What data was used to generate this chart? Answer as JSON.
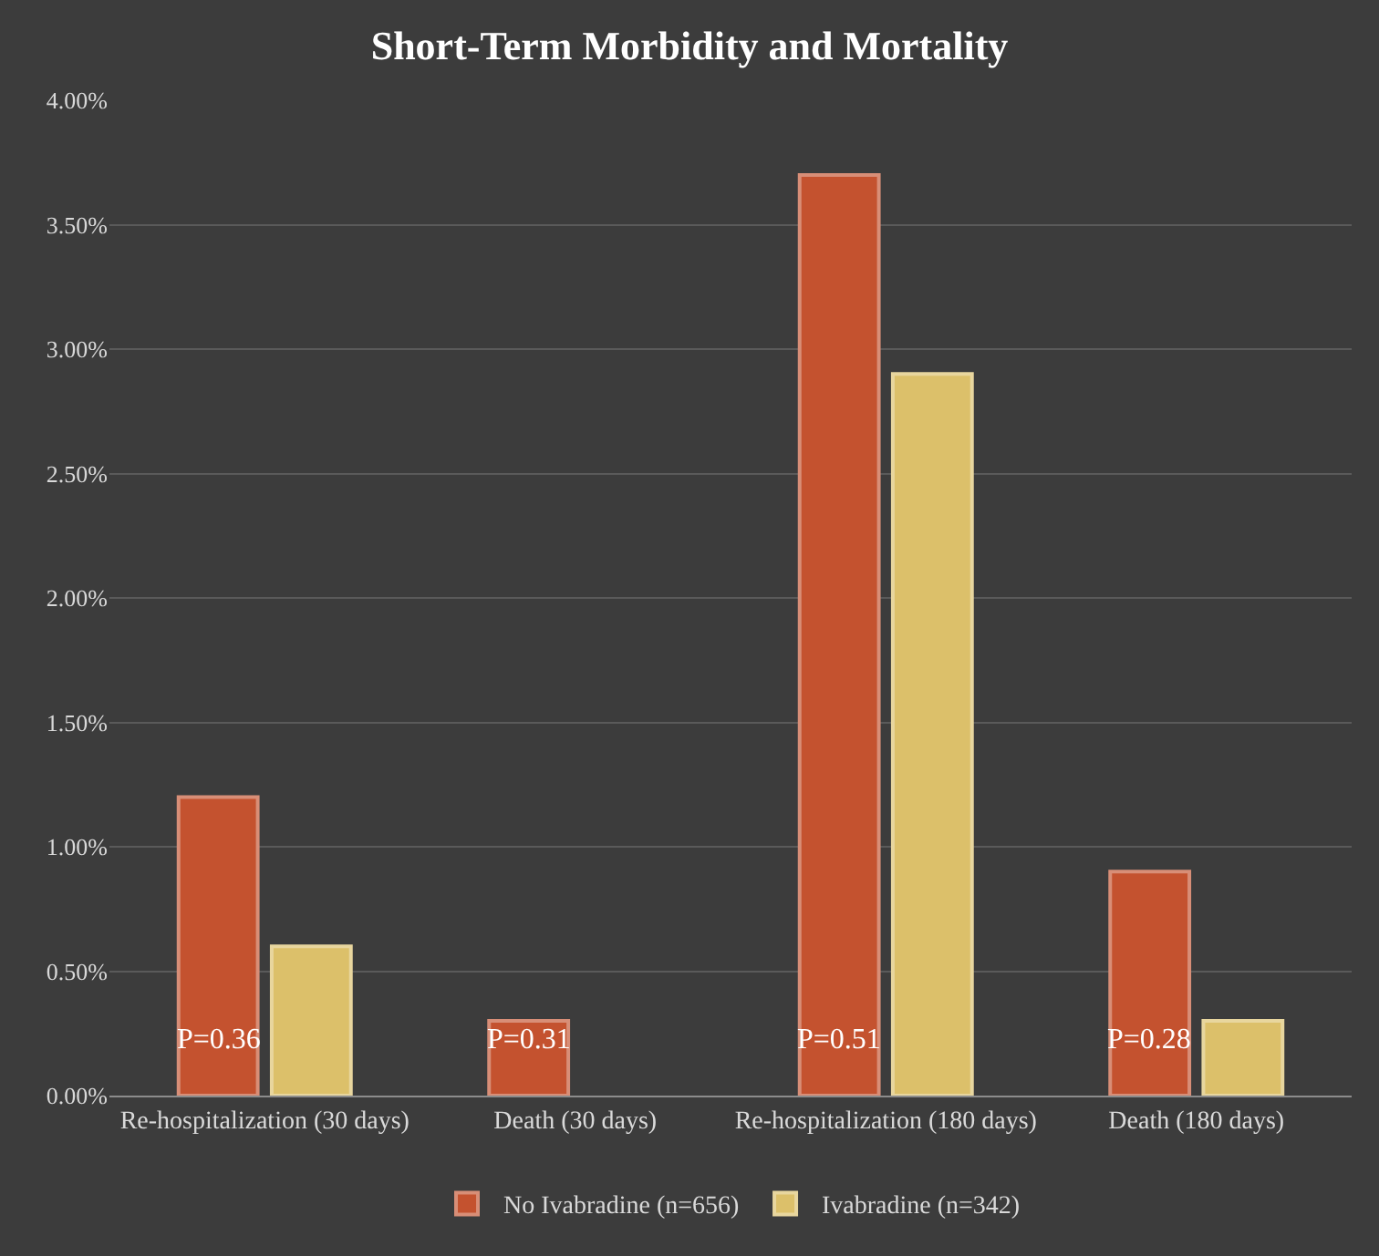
{
  "chart_data": {
    "type": "bar",
    "title": "Short-Term Morbidity and Mortality",
    "categories": [
      "Re-hospitalization (30 days)",
      "Death (30 days)",
      "Re-hospitalization (180 days)",
      "Death (180 days)"
    ],
    "series": [
      {
        "name": "No Ivabradine (n=656)",
        "color": "#c4522f",
        "values": [
          1.2,
          0.3,
          3.7,
          0.9
        ]
      },
      {
        "name": "Ivabradine (n=342)",
        "color": "#dcc06a",
        "values": [
          0.6,
          0,
          2.9,
          0.3
        ]
      }
    ],
    "ylim": [
      0,
      4
    ],
    "yticks": [
      {
        "value": 0,
        "label": "0.00%"
      },
      {
        "value": 0.5,
        "label": "0.50%"
      },
      {
        "value": 1,
        "label": "1.00%"
      },
      {
        "value": 1.5,
        "label": "1.50%"
      },
      {
        "value": 2,
        "label": "2.00%"
      },
      {
        "value": 2.5,
        "label": "2.50%"
      },
      {
        "value": 3,
        "label": "3.00%"
      },
      {
        "value": 3.5,
        "label": "3.50%"
      },
      {
        "value": 4,
        "label": "4.00%"
      }
    ],
    "annotations": [
      {
        "text": "P=0.36",
        "x": "Re-hospitalization (30 days)",
        "y": 0.15
      },
      {
        "text": "P=0.31",
        "x": "Death (30 days)",
        "y": 0.15
      },
      {
        "text": "P=0.51",
        "x": "Re-hospitalization (180 days)",
        "y": 0.15
      },
      {
        "text": "P=0.28",
        "x": "Death (180 days)",
        "y": 0.15
      }
    ],
    "grid": "y",
    "legend": "bottom"
  }
}
